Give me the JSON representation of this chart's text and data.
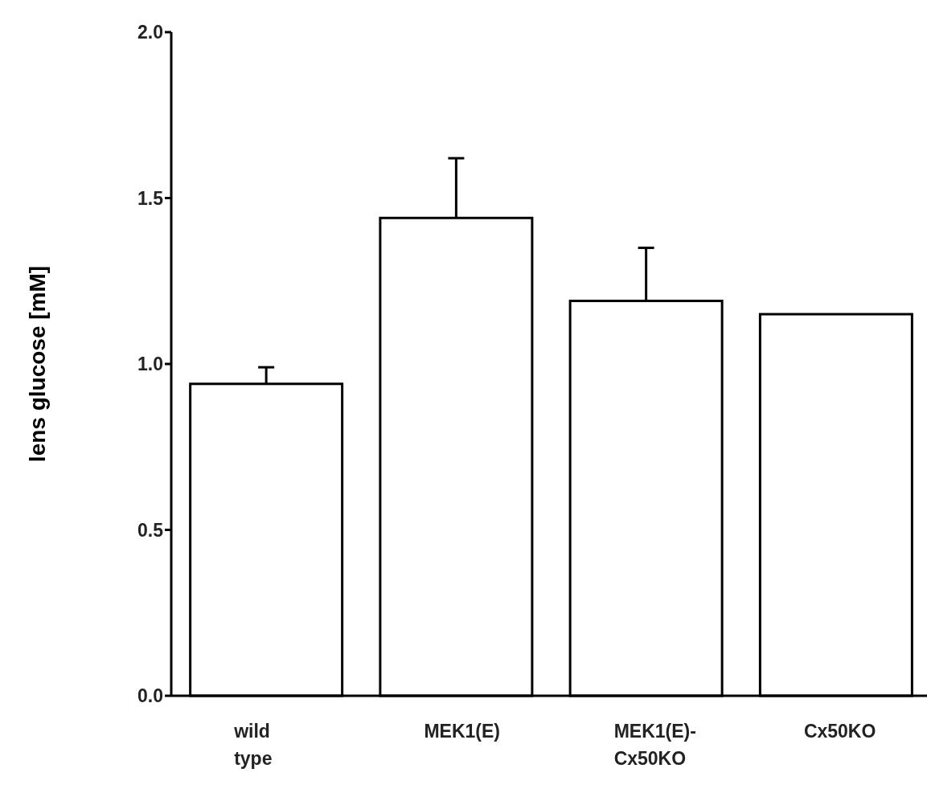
{
  "chart_data": {
    "type": "bar",
    "ylabel": "lens glucose [mM]",
    "categories": [
      "wild type",
      "MEK1(E)",
      "MEK1(E)-Cx50KO",
      "Cx50KO"
    ],
    "values": [
      0.94,
      1.44,
      1.19,
      1.15
    ],
    "errors": [
      [
        0.94,
        0.99
      ],
      [
        1.44,
        1.62
      ],
      [
        1.19,
        1.35
      ],
      null
    ],
    "color": "#ffffff",
    "ylim": [
      0,
      2.0
    ],
    "yticks": [
      {
        "value": 0,
        "label": "0.0"
      },
      {
        "value": 0.5,
        "label": "0.5"
      },
      {
        "value": 1.0,
        "label": "1.0"
      },
      {
        "value": 1.5,
        "label": "1.5"
      },
      {
        "value": 2.0,
        "label": "2.0"
      }
    ],
    "grid": false
  }
}
